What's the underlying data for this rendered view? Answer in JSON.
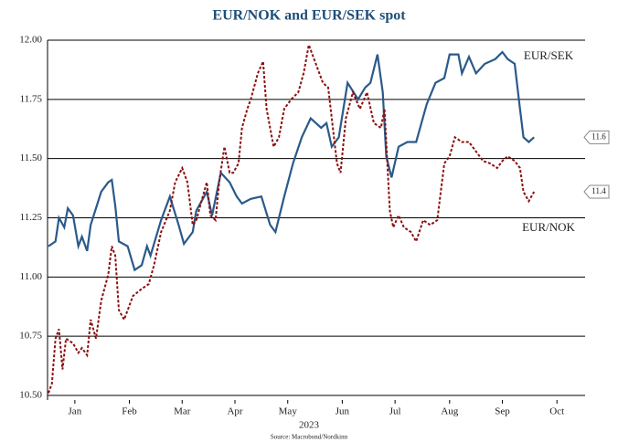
{
  "chart_data": {
    "type": "line",
    "title": "EUR/NOK and EUR/SEK spot",
    "x_label": "2023",
    "source": "Source: Macrobond/Nordkinn",
    "xlim": [
      0,
      305
    ],
    "xticks": [
      {
        "value": 15,
        "label": "Jan"
      },
      {
        "value": 46,
        "label": "Feb"
      },
      {
        "value": 76,
        "label": "Mar"
      },
      {
        "value": 106,
        "label": "Apr"
      },
      {
        "value": 136,
        "label": "May"
      },
      {
        "value": 167,
        "label": "Jun"
      },
      {
        "value": 197,
        "label": "Jul"
      },
      {
        "value": 228,
        "label": "Aug"
      },
      {
        "value": 258,
        "label": "Sep"
      },
      {
        "value": 289,
        "label": "Oct"
      }
    ],
    "ylim": [
      10.5,
      12.0
    ],
    "yticks": [
      {
        "value": 10.5,
        "label": "10.50"
      },
      {
        "value": 10.75,
        "label": "10.75"
      },
      {
        "value": 11.0,
        "label": "11.00"
      },
      {
        "value": 11.25,
        "label": "11.25"
      },
      {
        "value": 11.5,
        "label": "11.50"
      },
      {
        "value": 11.75,
        "label": "11.75"
      },
      {
        "value": 12.0,
        "label": "12.00"
      }
    ],
    "grid": true,
    "series": [
      {
        "name": "EUR/SEK",
        "color": "#2a5a8a",
        "dash": false,
        "end_label": "11.6",
        "x": [
          0,
          4,
          6,
          9,
          11,
          14,
          17,
          19,
          22,
          24,
          30,
          34,
          36,
          38,
          40,
          45,
          49,
          53,
          56,
          58,
          64,
          69,
          74,
          77,
          82,
          84,
          90,
          93,
          98,
          103,
          107,
          110,
          115,
          121,
          126,
          129,
          134,
          139,
          144,
          149,
          155,
          158,
          161,
          165,
          170,
          176,
          180,
          183,
          187,
          190,
          192,
          195,
          199,
          204,
          209,
          215,
          220,
          225,
          228,
          233,
          235,
          239,
          243,
          248,
          254,
          258,
          261,
          265,
          268,
          270,
          273,
          276
        ],
        "values": [
          11.13,
          11.15,
          11.25,
          11.21,
          11.29,
          11.26,
          11.13,
          11.17,
          11.11,
          11.22,
          11.36,
          11.4,
          11.41,
          11.3,
          11.15,
          11.13,
          11.03,
          11.05,
          11.13,
          11.09,
          11.24,
          11.34,
          11.22,
          11.14,
          11.19,
          11.28,
          11.36,
          11.26,
          11.44,
          11.4,
          11.34,
          11.31,
          11.33,
          11.34,
          11.22,
          11.19,
          11.34,
          11.48,
          11.59,
          11.67,
          11.63,
          11.65,
          11.55,
          11.59,
          11.82,
          11.75,
          11.8,
          11.82,
          11.94,
          11.78,
          11.51,
          11.42,
          11.55,
          11.57,
          11.57,
          11.73,
          11.82,
          11.84,
          11.94,
          11.94,
          11.86,
          11.93,
          11.86,
          11.9,
          11.92,
          11.95,
          11.92,
          11.9,
          11.71,
          11.59,
          11.57,
          11.59
        ]
      },
      {
        "name": "EUR/NOK",
        "color": "#8b1010",
        "dash": true,
        "end_label": "11.4",
        "x": [
          0,
          2,
          4,
          6,
          8,
          10,
          14,
          17,
          19,
          22,
          24,
          27,
          30,
          34,
          36,
          38,
          40,
          43,
          48,
          53,
          57,
          60,
          64,
          69,
          72,
          76,
          79,
          82,
          84,
          87,
          90,
          92,
          95,
          97,
          100,
          103,
          105,
          108,
          110,
          113,
          115,
          119,
          122,
          124,
          128,
          131,
          134,
          138,
          142,
          145,
          148,
          152,
          156,
          159,
          161,
          164,
          166,
          169,
          173,
          177,
          181,
          185,
          189,
          191,
          194,
          196,
          199,
          202,
          206,
          209,
          213,
          217,
          221,
          225,
          228,
          231,
          235,
          239,
          243,
          247,
          251,
          255,
          258,
          261,
          265,
          268,
          270,
          273,
          276
        ],
        "values": [
          10.51,
          10.55,
          10.74,
          10.78,
          10.61,
          10.74,
          10.72,
          10.68,
          10.7,
          10.67,
          10.82,
          10.74,
          10.9,
          11.01,
          11.13,
          11.09,
          10.86,
          10.82,
          10.92,
          10.95,
          10.97,
          11.05,
          11.19,
          11.28,
          11.4,
          11.46,
          11.4,
          11.22,
          11.24,
          11.32,
          11.4,
          11.26,
          11.24,
          11.4,
          11.55,
          11.44,
          11.44,
          11.48,
          11.63,
          11.71,
          11.75,
          11.86,
          11.91,
          11.71,
          11.55,
          11.59,
          11.71,
          11.75,
          11.78,
          11.86,
          11.98,
          11.9,
          11.82,
          11.8,
          11.67,
          11.48,
          11.44,
          11.67,
          11.78,
          11.71,
          11.78,
          11.65,
          11.63,
          11.71,
          11.28,
          11.21,
          11.26,
          11.21,
          11.19,
          11.15,
          11.24,
          11.22,
          11.24,
          11.48,
          11.51,
          11.59,
          11.57,
          11.57,
          11.53,
          11.49,
          11.48,
          11.46,
          11.49,
          11.51,
          11.49,
          11.46,
          11.36,
          11.32,
          11.36
        ]
      }
    ]
  }
}
